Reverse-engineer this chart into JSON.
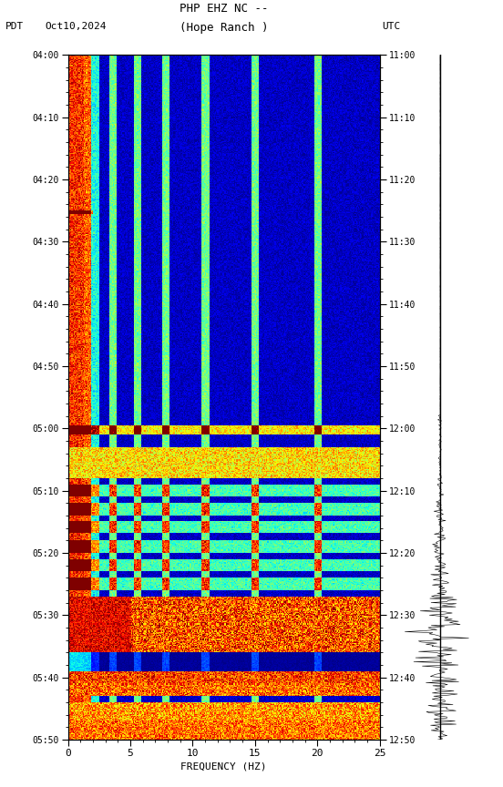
{
  "title_line1": "PHP EHZ NC --",
  "title_line2": "(Hope Ranch )",
  "date_label": "Oct10,2024",
  "tz_left": "PDT",
  "tz_right": "UTC",
  "left_time_labels": [
    "04:00",
    "04:10",
    "04:20",
    "04:30",
    "04:40",
    "04:50",
    "05:00",
    "05:10",
    "05:20",
    "05:30",
    "05:40",
    "05:50"
  ],
  "right_time_labels": [
    "11:00",
    "11:10",
    "11:20",
    "11:30",
    "11:40",
    "11:50",
    "12:00",
    "12:10",
    "12:20",
    "12:30",
    "12:40",
    "12:50"
  ],
  "freq_min": 0,
  "freq_max": 25,
  "freq_ticks": [
    0,
    5,
    10,
    15,
    20,
    25
  ],
  "freq_label": "FREQUENCY (HZ)",
  "bg_color": "#ffffff",
  "spectrogram_colormap": "jet",
  "n_time_steps": 660,
  "n_freq_steps": 300,
  "total_minutes": 110
}
